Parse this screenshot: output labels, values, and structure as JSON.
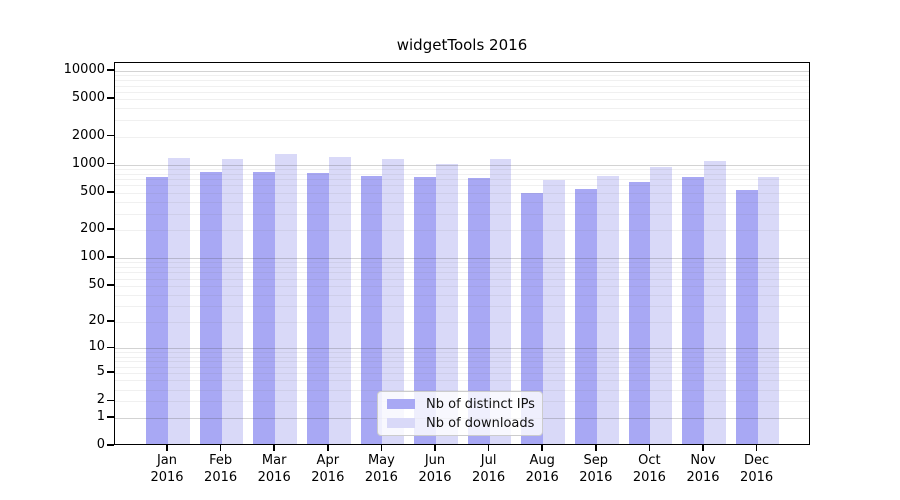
{
  "chart_data": {
    "type": "bar",
    "title": "widgetTools 2016",
    "yscale": "log1p",
    "grid": true,
    "legend_position": "lower center",
    "categories": [
      "Jan",
      "Feb",
      "Mar",
      "Apr",
      "May",
      "Jun",
      "Jul",
      "Aug",
      "Sep",
      "Oct",
      "Nov",
      "Dec"
    ],
    "year": "2016",
    "series": [
      {
        "name": "Nb of distinct IPs",
        "color": "#a8a8f4",
        "values": [
          700,
          805,
          790,
          780,
          720,
          705,
          685,
          480,
          525,
          630,
          710,
          510
        ]
      },
      {
        "name": "Nb of downloads",
        "color": "#d9d9f8",
        "values": [
          1125,
          1100,
          1240,
          1145,
          1105,
          970,
          1100,
          660,
          720,
          910,
          1050,
          700
        ]
      }
    ],
    "y_ticks": [
      0,
      1,
      2,
      5,
      10,
      20,
      50,
      100,
      200,
      500,
      1000,
      2000,
      5000,
      10000
    ],
    "ylim": [
      0,
      12000
    ],
    "xlabel": "",
    "ylabel": "",
    "colors": {
      "grid_major": "#cecece",
      "grid_minor": "#ededed",
      "spine": "#000000",
      "text": "#000000",
      "legend_border": "#cccccc",
      "background": "#ffffff"
    }
  }
}
